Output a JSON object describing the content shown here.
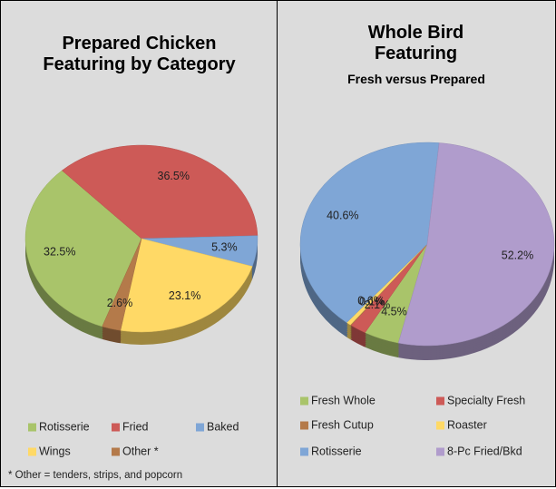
{
  "chart_data": [
    {
      "type": "pie",
      "title": "Prepared Chicken Featuring by Category",
      "categories": [
        "Rotisserie",
        "Fried",
        "Baked",
        "Wings",
        "Other *"
      ],
      "values": [
        32.5,
        36.5,
        5.3,
        23.1,
        2.6
      ],
      "value_labels": [
        "32.5%",
        "36.5%",
        "5.3%",
        "23.1%",
        "2.6%"
      ],
      "colors": [
        "#a9c46a",
        "#cd5a57",
        "#7fa6d6",
        "#ffd966",
        "#b47a4a"
      ],
      "footnote": "* Other = tenders, strips, and popcorn"
    },
    {
      "type": "pie",
      "title": "Whole Bird Featuring",
      "subtitle": "Fresh versus Prepared",
      "categories": [
        "Fresh Whole",
        "Specialty Fresh",
        "Fresh Cutup",
        "Roaster",
        "Rotisserie",
        "8-Pc Fried/Bkd"
      ],
      "values": [
        4.5,
        2.1,
        0.1,
        0.6,
        40.6,
        52.2
      ],
      "value_labels": [
        "4.5%",
        "2.1%",
        "0.1%",
        "0.6%",
        "40.6%",
        "52.2%"
      ],
      "colors": [
        "#a9c46a",
        "#cd5a57",
        "#b47a4a",
        "#ffd966",
        "#7fa6d6",
        "#b09ccc"
      ]
    }
  ]
}
